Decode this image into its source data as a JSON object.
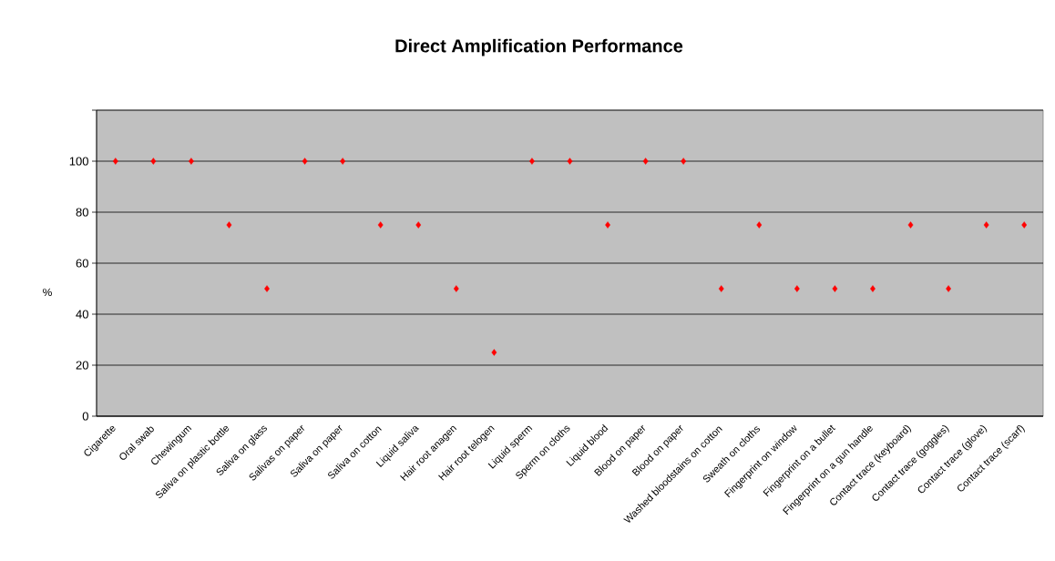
{
  "chart_data": {
    "type": "scatter",
    "title": "Direct Amplification Performance",
    "ylabel": "%",
    "categories": [
      "Cigarette",
      "Oral swab",
      "Chewingum",
      "Saliva on plastic bottle",
      "Saliva on glass",
      "Salivas on paper",
      "Saliva on paper",
      "Saliva on cotton",
      "Liquid saliva",
      "Hair root anagen",
      "Hair root telogen",
      "Liquid sperm",
      "Sperm on cloths",
      "Liquid blood",
      "Blood on paper",
      "Blood on paper",
      "Washed bloodstains on cotton",
      "Sweath on cloths",
      "Fingerprint on window",
      "Fingerprint on a bullet",
      "Fingerprint on a gun handle",
      "Contact trace (keyboard)",
      "Contact trace (goggles)",
      "Contact trace (glove)",
      "Contact trace (scarf)"
    ],
    "values": [
      100,
      100,
      100,
      75,
      50,
      100,
      100,
      75,
      75,
      50,
      25,
      100,
      100,
      75,
      100,
      100,
      50,
      75,
      50,
      50,
      50,
      75,
      50,
      75,
      75
    ],
    "color": "#ff0000",
    "marker": "diamond",
    "grid": "y",
    "ylim": [
      0,
      120
    ],
    "yticks": [
      0,
      20,
      40,
      60,
      80,
      100,
      {
        "value": 120,
        "label": null
      }
    ]
  }
}
